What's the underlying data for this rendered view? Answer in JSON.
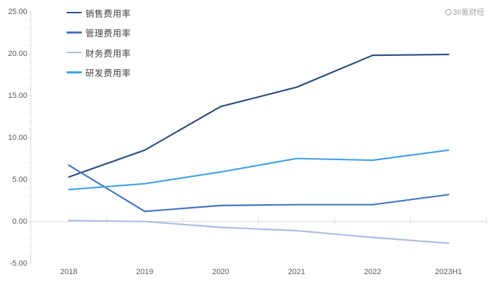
{
  "watermark": {
    "text": "36氪财经"
  },
  "chart_data": {
    "type": "line",
    "title": "",
    "xlabel": "",
    "ylabel": "",
    "categories": [
      "2018",
      "2019",
      "2020",
      "2021",
      "2022",
      "2023H1"
    ],
    "series": [
      {
        "name": "销售费用率",
        "color": "#2E4E7E",
        "values": [
          5.3,
          8.5,
          13.7,
          16.0,
          19.8,
          19.9
        ]
      },
      {
        "name": "管理费用率",
        "color": "#4472C4",
        "values": [
          6.7,
          1.2,
          1.9,
          2.0,
          2.0,
          3.2
        ]
      },
      {
        "name": "财务费用率",
        "color": "#AEBCE2",
        "values": [
          0.1,
          0.0,
          -0.7,
          -1.1,
          -1.9,
          -2.6
        ]
      },
      {
        "name": "研发费用率",
        "color": "#41A2E8",
        "values": [
          3.8,
          4.5,
          5.9,
          7.5,
          7.3,
          8.5
        ]
      }
    ],
    "ylim": [
      -5,
      25
    ],
    "y_ticks": [
      "25.00",
      "20.00",
      "15.00",
      "10.00",
      "5.00",
      "0.00",
      "-5.00"
    ],
    "y_tick_values": [
      25,
      20,
      15,
      10,
      5,
      0,
      -5
    ],
    "grid": false,
    "legend_position": "top-left",
    "axis_color": "#D9D9D9",
    "label_color": "#595959"
  }
}
